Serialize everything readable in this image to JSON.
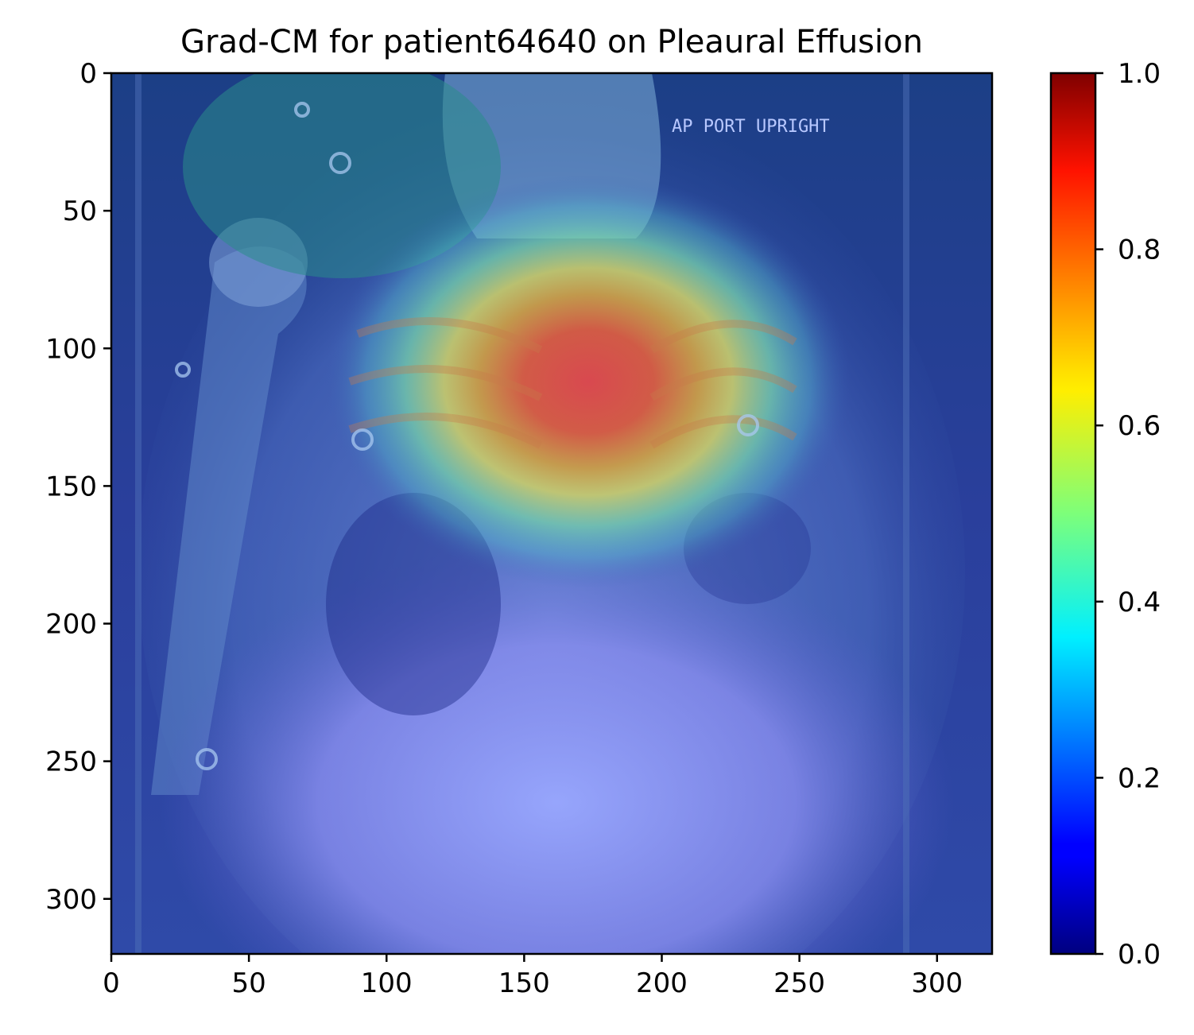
{
  "chart_data": {
    "type": "heatmap",
    "title": "Grad-CM for patient64640 on Pleaural Effusion",
    "image_overlay_text": "AP PORT UPRIGHT",
    "xlim": [
      0,
      320
    ],
    "ylim": [
      320,
      0
    ],
    "x_ticks": [
      0,
      50,
      100,
      150,
      200,
      250,
      300
    ],
    "y_ticks": [
      0,
      50,
      100,
      150,
      200,
      250,
      300
    ],
    "colormap": "jet",
    "colorbar": {
      "range": [
        0,
        1
      ],
      "ticks": [
        "0.0",
        "0.2",
        "0.4",
        "0.6",
        "0.8",
        "1.0"
      ]
    },
    "activation_peak": {
      "x": 175,
      "y": 113,
      "value": 1.0
    },
    "grid": false
  }
}
